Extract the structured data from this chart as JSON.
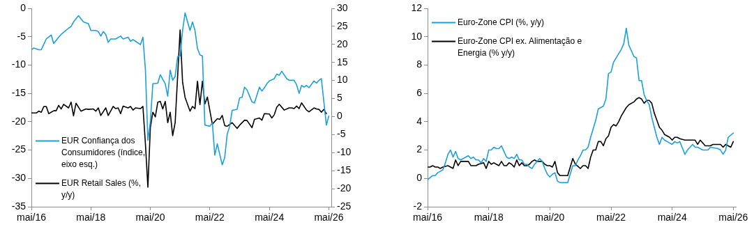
{
  "chart_data": [
    {
      "type": "line",
      "legend": "bottom left",
      "xlim": [
        "2016-05",
        "2026-06"
      ],
      "xticks": [
        {
          "value": "2016-05",
          "label": "mai/16"
        },
        {
          "value": "2018-05",
          "label": "mai/18"
        },
        {
          "value": "2020-05",
          "label": "mai/20"
        },
        {
          "value": "2022-05",
          "label": "mai/22"
        },
        {
          "value": "2024-05",
          "label": "mai/24"
        },
        {
          "value": "2026-05",
          "label": "mai/26"
        }
      ],
      "ylim": [
        -35,
        0
      ],
      "yticks": [
        -35,
        -30,
        -25,
        -20,
        -15,
        -10,
        -5,
        0
      ],
      "y2lim": [
        -25,
        30
      ],
      "y2ticks": [
        -25,
        -20,
        -15,
        -10,
        -5,
        0,
        5,
        10,
        15,
        20,
        25,
        30
      ],
      "series": [
        {
          "name": "EUR Confiança dos Consumidores (índice, eixo esq.)",
          "color": "#1a9fdf",
          "x": [
            "2016-05",
            "2016-06",
            "2016-08",
            "2016-09",
            "2016-11",
            "2017-01",
            "2017-02",
            "2017-04",
            "2017-05",
            "2017-08",
            "2017-09",
            "2017-10",
            "2017-12",
            "2018-02",
            "2018-04",
            "2018-05",
            "2018-07",
            "2018-08",
            "2018-09",
            "2018-10",
            "2018-11",
            "2018-12",
            "2019-01",
            "2019-03",
            "2019-05",
            "2019-06",
            "2019-08",
            "2019-09",
            "2019-10",
            "2019-11",
            "2020-01",
            "2020-02",
            "2020-03",
            "2020-04",
            "2020-05",
            "2020-06",
            "2020-08",
            "2020-09",
            "2020-11",
            "2020-12",
            "2021-01",
            "2021-02",
            "2021-03",
            "2021-04",
            "2021-05",
            "2021-06",
            "2021-07",
            "2021-09",
            "2021-10",
            "2021-11",
            "2021-12",
            "2022-01",
            "2022-02",
            "2022-03",
            "2022-05",
            "2022-06",
            "2022-07",
            "2022-08",
            "2022-10",
            "2022-11",
            "2022-12",
            "2023-01",
            "2023-02",
            "2023-04",
            "2023-05",
            "2023-06",
            "2023-07",
            "2023-08",
            "2023-10",
            "2023-11",
            "2023-12",
            "2024-01",
            "2024-02",
            "2024-03",
            "2024-04",
            "2024-05",
            "2024-07",
            "2024-08",
            "2024-09",
            "2024-10",
            "2024-12",
            "2025-01",
            "2025-03",
            "2025-04",
            "2025-05",
            "2025-06",
            "2025-07",
            "2025-08",
            "2025-09",
            "2025-11",
            "2025-12",
            "2026-01",
            "2026-02",
            "2026-04",
            "2026-05"
          ],
          "values": [
            -7.3,
            -7.0,
            -7.3,
            -7.3,
            -5.4,
            -4.7,
            -6.2,
            -5.1,
            -4.6,
            -3.5,
            -3.2,
            -2.4,
            -1.3,
            -2.4,
            -2.7,
            -3.9,
            -3.9,
            -4.1,
            -4.9,
            -4.1,
            -4.6,
            -6.0,
            -5.4,
            -5.4,
            -4.9,
            -5.4,
            -5.1,
            -5.8,
            -5.5,
            -5.8,
            -6.4,
            -5.1,
            -10.8,
            -23.3,
            -20.0,
            -13.3,
            -13.2,
            -11.7,
            -13.3,
            -15.5,
            -10.9,
            -12.7,
            -12.0,
            -8.5,
            -8.4,
            -3.9,
            -0.8,
            -3.9,
            -2.4,
            -3.9,
            -7.1,
            -8.2,
            -8.4,
            -20.6,
            -20.8,
            -20.2,
            -25.9,
            -23.9,
            -27.6,
            -26.3,
            -22.2,
            -20.8,
            -18.0,
            -17.8,
            -15.8,
            -15.7,
            -13.9,
            -14.4,
            -16.5,
            -16.7,
            -15.3,
            -13.9,
            -14.6,
            -14.0,
            -13.3,
            -12.8,
            -12.4,
            -11.6,
            -11.8,
            -11.1,
            -12.4,
            -12.7,
            -12.7,
            -13.5,
            -15.0,
            -13.6,
            -13.9,
            -13.6,
            -14.0,
            -12.8,
            -13.2,
            -12.7,
            -12.4,
            -20.6,
            -19.0
          ]
        },
        {
          "name": "EUR Retail Sales (%, y/y)",
          "color": "#000000",
          "axis": "y2",
          "x": [
            "2016-05",
            "2016-07",
            "2016-08",
            "2016-09",
            "2016-10",
            "2016-11",
            "2016-12",
            "2017-02",
            "2017-03",
            "2017-04",
            "2017-05",
            "2017-06",
            "2017-08",
            "2017-09",
            "2017-10",
            "2017-11",
            "2018-01",
            "2018-03",
            "2018-04",
            "2018-06",
            "2018-07",
            "2018-08",
            "2018-09",
            "2018-11",
            "2018-12",
            "2019-02",
            "2019-03",
            "2019-04",
            "2019-05",
            "2019-06",
            "2019-08",
            "2019-09",
            "2019-10",
            "2019-11",
            "2020-01",
            "2020-02",
            "2020-03",
            "2020-04",
            "2020-05",
            "2020-06",
            "2020-07",
            "2020-08",
            "2020-09",
            "2020-10",
            "2020-11",
            "2020-12",
            "2021-01",
            "2021-02",
            "2021-03",
            "2021-05",
            "2021-06",
            "2021-07",
            "2021-09",
            "2021-10",
            "2021-11",
            "2021-12",
            "2022-01",
            "2022-02",
            "2022-03",
            "2022-04",
            "2022-06",
            "2022-08",
            "2022-09",
            "2022-10",
            "2022-11",
            "2022-12",
            "2023-02",
            "2023-04",
            "2023-05",
            "2023-07",
            "2023-08",
            "2023-10",
            "2023-11",
            "2024-01",
            "2024-02",
            "2024-03",
            "2024-05",
            "2024-06",
            "2024-07",
            "2024-08",
            "2024-09",
            "2024-11",
            "2025-01",
            "2025-02",
            "2025-03",
            "2025-04",
            "2025-05",
            "2025-06",
            "2025-08",
            "2025-09",
            "2025-11",
            "2025-12",
            "2026-01",
            "2026-02",
            "2026-03",
            "2026-04"
          ],
          "values": [
            1.0,
            1.0,
            1.5,
            1.2,
            2.8,
            2.8,
            0.8,
            1.6,
            1.6,
            3.1,
            2.1,
            3.4,
            2.4,
            4.0,
            0.2,
            3.7,
            1.5,
            2.1,
            2.0,
            2.1,
            1.5,
            2.4,
            0.3,
            2.4,
            0.3,
            2.8,
            2.2,
            2.4,
            0.8,
            2.9,
            2.4,
            2.8,
            1.8,
            2.4,
            2.2,
            2.8,
            -7.5,
            -19.6,
            -3.0,
            1.2,
            -0.1,
            4.0,
            4.2,
            2.1,
            4.2,
            -1.7,
            1.2,
            -5.3,
            -1.7,
            24.0,
            9.5,
            5.3,
            1.5,
            2.8,
            2.2,
            9.8,
            3.3,
            9.8,
            3.5,
            5.4,
            -2.1,
            -0.6,
            -0.8,
            0.3,
            -2.5,
            -2.7,
            -1.7,
            -3.3,
            -2.4,
            -1.0,
            -1.1,
            -3.1,
            -0.8,
            -0.4,
            -1.0,
            0.8,
            0.7,
            -0.4,
            0.5,
            2.6,
            3.4,
            1.8,
            2.4,
            2.4,
            2.2,
            2.9,
            2.2,
            3.8,
            1.8,
            1.3,
            2.4,
            2.1,
            2.0,
            1.2,
            2.0,
            0.8
          ]
        }
      ]
    },
    {
      "type": "line",
      "legend": "top left",
      "xlim": [
        "2016-05",
        "2026-06"
      ],
      "xticks": [
        {
          "value": "2016-05",
          "label": "mai/16"
        },
        {
          "value": "2018-05",
          "label": "mai/18"
        },
        {
          "value": "2020-05",
          "label": "mai/20"
        },
        {
          "value": "2022-05",
          "label": "mai/22"
        },
        {
          "value": "2024-05",
          "label": "mai/24"
        },
        {
          "value": "2026-05",
          "label": "mai/26"
        }
      ],
      "ylim": [
        -2,
        12
      ],
      "yticks": [
        -2,
        0,
        2,
        4,
        6,
        8,
        10,
        12
      ],
      "series": [
        {
          "name": "Euro-Zone CPI (%, y/y)",
          "color": "#1a9fdf",
          "x": [
            "2016-05",
            "2016-07",
            "2016-08",
            "2016-09",
            "2016-10",
            "2016-11",
            "2016-12",
            "2017-01",
            "2017-02",
            "2017-03",
            "2017-04",
            "2017-05",
            "2017-06",
            "2017-08",
            "2017-09",
            "2017-10",
            "2017-11",
            "2017-12",
            "2018-01",
            "2018-02",
            "2018-03",
            "2018-04",
            "2018-05",
            "2018-06",
            "2018-07",
            "2018-08",
            "2018-09",
            "2018-10",
            "2018-11",
            "2018-12",
            "2019-01",
            "2019-02",
            "2019-03",
            "2019-04",
            "2019-05",
            "2019-06",
            "2019-07",
            "2019-08",
            "2019-09",
            "2019-10",
            "2019-11",
            "2019-12",
            "2020-01",
            "2020-02",
            "2020-03",
            "2020-04",
            "2020-05",
            "2020-06",
            "2020-07",
            "2020-08",
            "2020-09",
            "2020-10",
            "2020-12",
            "2021-02",
            "2021-03",
            "2021-04",
            "2021-05",
            "2021-06",
            "2021-07",
            "2021-08",
            "2021-09",
            "2021-11",
            "2021-12",
            "2022-02",
            "2022-03",
            "2022-04",
            "2022-05",
            "2022-06",
            "2022-08",
            "2022-09",
            "2022-10",
            "2022-11",
            "2022-12",
            "2023-02",
            "2023-03",
            "2023-04",
            "2023-05",
            "2023-06",
            "2023-07",
            "2023-08",
            "2023-09",
            "2023-11",
            "2023-12",
            "2024-01",
            "2024-02",
            "2024-04",
            "2024-05",
            "2024-06",
            "2024-07",
            "2024-08",
            "2024-10",
            "2024-11",
            "2025-01",
            "2025-02",
            "2025-03",
            "2025-05",
            "2025-07",
            "2025-08",
            "2025-11",
            "2025-12",
            "2026-01",
            "2026-02",
            "2026-03",
            "2026-05"
          ],
          "values": [
            -0.1,
            0.2,
            0.2,
            0.4,
            0.5,
            0.6,
            1.1,
            1.7,
            2.0,
            1.5,
            1.9,
            1.4,
            1.3,
            1.5,
            1.6,
            1.4,
            1.5,
            1.3,
            1.3,
            1.1,
            1.4,
            1.2,
            2.0,
            2.0,
            2.2,
            2.1,
            2.1,
            2.3,
            1.9,
            1.5,
            1.4,
            1.5,
            1.4,
            1.7,
            1.3,
            1.3,
            1.0,
            1.0,
            0.8,
            0.7,
            1.0,
            1.2,
            1.4,
            1.2,
            0.7,
            0.3,
            0.1,
            0.3,
            0.4,
            -0.2,
            -0.3,
            -0.3,
            -0.3,
            0.9,
            0.9,
            1.3,
            1.6,
            2.0,
            2.0,
            2.2,
            2.9,
            4.1,
            4.9,
            5.1,
            5.6,
            7.4,
            7.5,
            8.2,
            8.8,
            9.1,
            9.5,
            10.6,
            9.4,
            8.6,
            8.5,
            6.9,
            6.9,
            5.9,
            5.5,
            5.2,
            4.3,
            2.9,
            2.4,
            2.9,
            2.7,
            2.5,
            2.4,
            2.6,
            2.5,
            2.6,
            1.7,
            2.0,
            2.4,
            2.2,
            2.2,
            2.0,
            2.0,
            2.2,
            2.1,
            2.0,
            1.7,
            2.0,
            2.9,
            3.2
          ]
        },
        {
          "name": "Euro-Zone CPI ex. Alimentação e Energia (% y/y)",
          "color": "#000000",
          "x": [
            "2016-05",
            "2016-06",
            "2016-07",
            "2016-08",
            "2016-09",
            "2016-10",
            "2016-11",
            "2017-01",
            "2017-02",
            "2017-03",
            "2017-04",
            "2017-05",
            "2017-06",
            "2017-09",
            "2017-10",
            "2017-12",
            "2018-01",
            "2018-03",
            "2018-04",
            "2018-05",
            "2018-06",
            "2018-07",
            "2018-08",
            "2018-09",
            "2018-10",
            "2018-11",
            "2018-12",
            "2019-01",
            "2019-02",
            "2019-03",
            "2019-04",
            "2019-05",
            "2019-06",
            "2019-07",
            "2019-08",
            "2019-09",
            "2019-10",
            "2019-11",
            "2019-12",
            "2020-01",
            "2020-02",
            "2020-03",
            "2020-04",
            "2020-05",
            "2020-06",
            "2020-07",
            "2020-08",
            "2020-09",
            "2020-12",
            "2021-02",
            "2021-03",
            "2021-05",
            "2021-06",
            "2021-07",
            "2021-08",
            "2021-09",
            "2021-10",
            "2021-11",
            "2021-12",
            "2022-01",
            "2022-02",
            "2022-03",
            "2022-04",
            "2022-05",
            "2022-06",
            "2022-07",
            "2022-08",
            "2022-09",
            "2022-11",
            "2022-12",
            "2023-02",
            "2023-03",
            "2023-04",
            "2023-05",
            "2023-06",
            "2023-07",
            "2023-08",
            "2023-09",
            "2023-10",
            "2023-11",
            "2023-12",
            "2024-01",
            "2024-02",
            "2024-04",
            "2024-05",
            "2024-06",
            "2024-07",
            "2024-08",
            "2024-10",
            "2024-12",
            "2025-02",
            "2025-03",
            "2025-04",
            "2025-06",
            "2025-08",
            "2025-09",
            "2025-12",
            "2026-01",
            "2026-02",
            "2026-04",
            "2026-05"
          ],
          "values": [
            0.8,
            0.8,
            0.9,
            0.8,
            0.8,
            0.7,
            0.8,
            0.9,
            0.8,
            0.7,
            1.3,
            0.9,
            1.2,
            1.2,
            0.9,
            0.9,
            1.0,
            1.1,
            0.7,
            1.2,
            1.0,
            1.1,
            1.0,
            0.9,
            1.2,
            0.9,
            0.9,
            1.1,
            1.0,
            0.8,
            1.3,
            0.9,
            1.1,
            0.9,
            0.9,
            1.0,
            1.2,
            1.3,
            1.2,
            1.2,
            1.2,
            1.0,
            0.9,
            0.9,
            0.8,
            1.2,
            0.4,
            0.2,
            0.2,
            1.4,
            1.0,
            0.7,
            0.9,
            0.9,
            0.7,
            1.5,
            2.0,
            2.0,
            2.6,
            2.6,
            2.3,
            2.8,
            3.0,
            3.6,
            3.8,
            3.7,
            4.0,
            4.4,
            5.0,
            5.2,
            5.4,
            5.6,
            5.7,
            5.6,
            5.3,
            5.5,
            5.5,
            5.3,
            4.6,
            4.1,
            3.6,
            3.4,
            3.1,
            2.9,
            2.7,
            2.9,
            2.9,
            2.8,
            2.7,
            2.7,
            2.7,
            2.4,
            2.7,
            2.3,
            2.3,
            2.4,
            2.4,
            2.2,
            2.4,
            2.2,
            2.6
          ]
        }
      ]
    }
  ]
}
